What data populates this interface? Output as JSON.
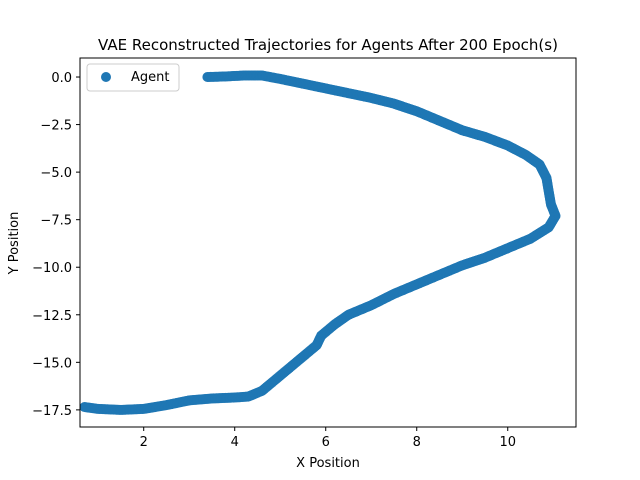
{
  "chart_data": {
    "type": "scatter",
    "title": "VAE Reconstructed Trajectories for Agents After 200 Epoch(s)",
    "xlabel": "X Position",
    "ylabel": "Y Position",
    "xlim": [
      0.6,
      11.5
    ],
    "ylim": [
      -18.4,
      1.0
    ],
    "xticks": [
      2,
      4,
      6,
      8,
      10
    ],
    "yticks": [
      0.0,
      -2.5,
      -5.0,
      -7.5,
      -10.0,
      -12.5,
      -15.0,
      -17.5
    ],
    "xtick_labels": [
      "2",
      "4",
      "6",
      "8",
      "10"
    ],
    "ytick_labels": [
      "0.0",
      "−2.5",
      "−5.0",
      "−7.5",
      "−10.0",
      "−12.5",
      "−15.0",
      "−17.5"
    ],
    "legend": {
      "position": "top-left",
      "entries": [
        "Agent"
      ]
    },
    "grid": false,
    "series": [
      {
        "name": "Agent",
        "color": "#1f77b4",
        "points": [
          [
            3.4,
            0.0
          ],
          [
            3.8,
            0.03
          ],
          [
            4.2,
            0.08
          ],
          [
            4.6,
            0.08
          ],
          [
            5.0,
            -0.1
          ],
          [
            5.5,
            -0.35
          ],
          [
            6.0,
            -0.6
          ],
          [
            6.5,
            -0.85
          ],
          [
            7.0,
            -1.1
          ],
          [
            7.5,
            -1.4
          ],
          [
            8.0,
            -1.8
          ],
          [
            8.5,
            -2.3
          ],
          [
            9.0,
            -2.8
          ],
          [
            9.5,
            -3.15
          ],
          [
            10.0,
            -3.6
          ],
          [
            10.4,
            -4.1
          ],
          [
            10.7,
            -4.6
          ],
          [
            10.85,
            -5.3
          ],
          [
            10.9,
            -6.0
          ],
          [
            10.95,
            -6.7
          ],
          [
            11.05,
            -7.3
          ],
          [
            10.9,
            -7.9
          ],
          [
            10.5,
            -8.5
          ],
          [
            10.0,
            -9.0
          ],
          [
            9.5,
            -9.5
          ],
          [
            9.0,
            -9.9
          ],
          [
            8.5,
            -10.4
          ],
          [
            8.0,
            -10.9
          ],
          [
            7.5,
            -11.4
          ],
          [
            7.0,
            -12.0
          ],
          [
            6.5,
            -12.5
          ],
          [
            6.2,
            -13.0
          ],
          [
            5.9,
            -13.6
          ],
          [
            5.8,
            -14.1
          ],
          [
            5.5,
            -14.7
          ],
          [
            5.2,
            -15.3
          ],
          [
            4.9,
            -15.9
          ],
          [
            4.6,
            -16.5
          ],
          [
            4.3,
            -16.8
          ],
          [
            4.0,
            -16.85
          ],
          [
            3.5,
            -16.9
          ],
          [
            3.0,
            -17.0
          ],
          [
            2.5,
            -17.25
          ],
          [
            2.0,
            -17.45
          ],
          [
            1.5,
            -17.5
          ],
          [
            1.0,
            -17.45
          ],
          [
            0.7,
            -17.35
          ]
        ]
      }
    ]
  }
}
